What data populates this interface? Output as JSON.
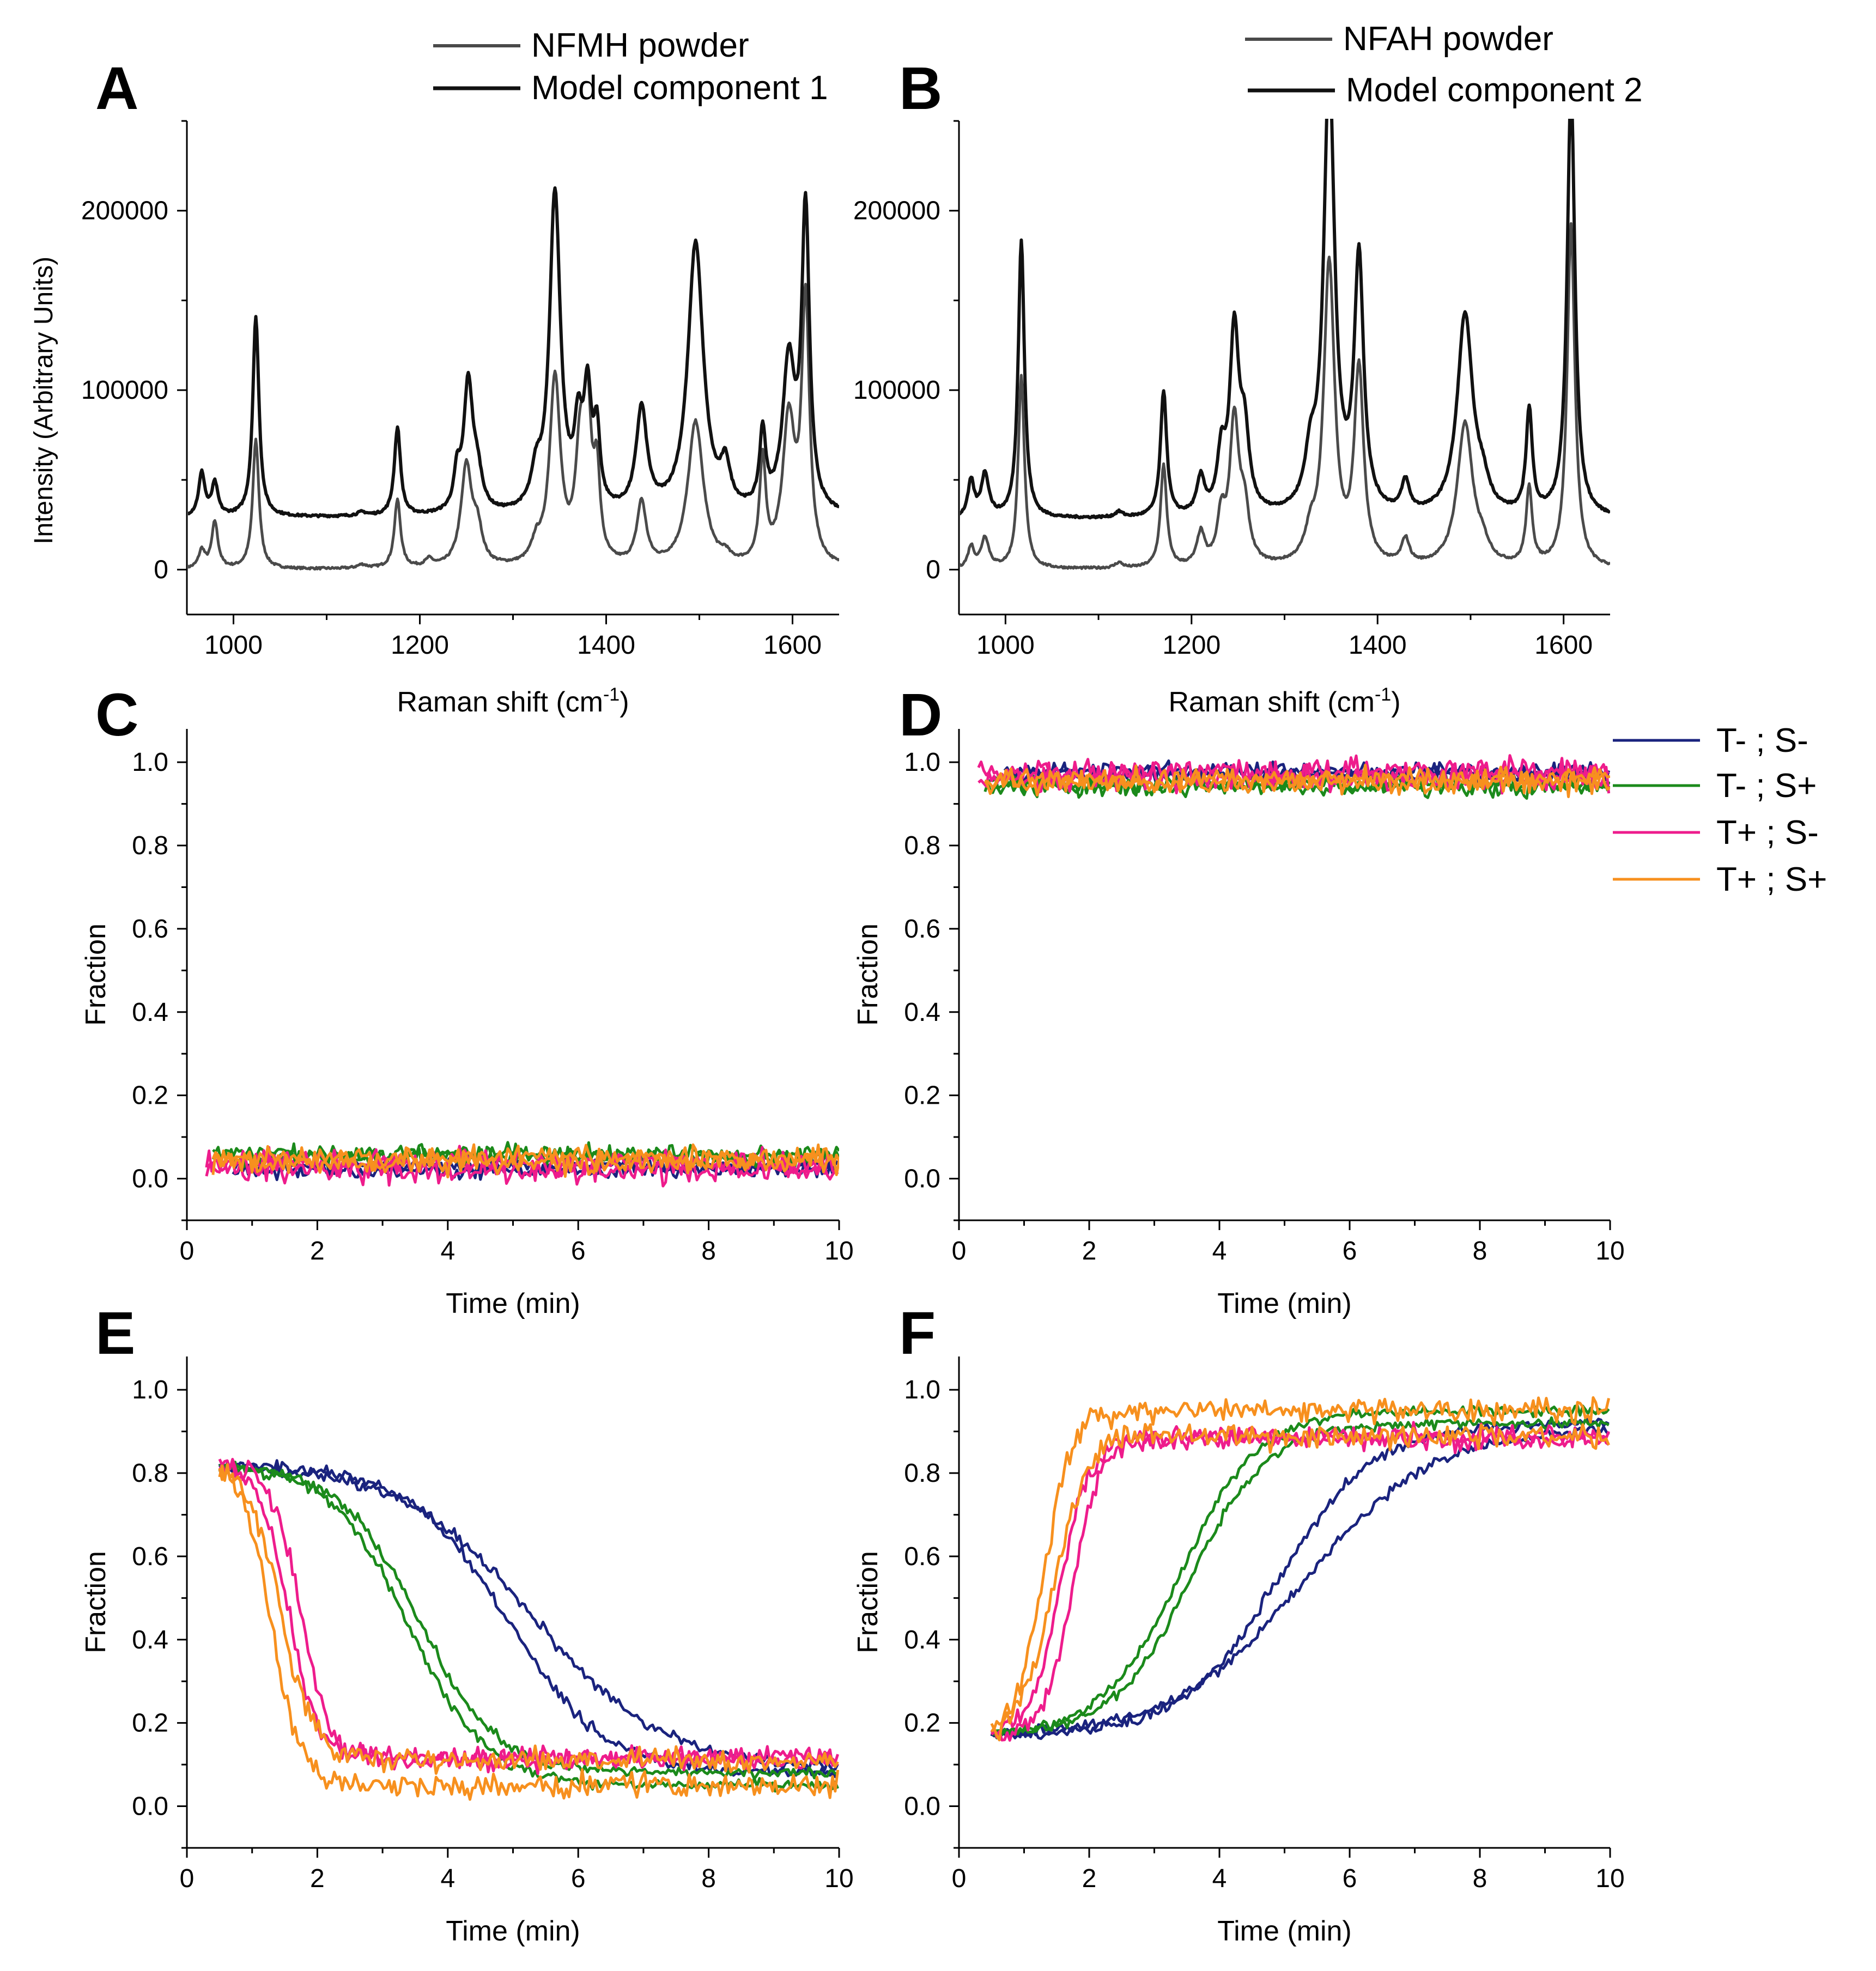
{
  "figure": {
    "axis_label_intensity": "Intensity (Arbitrary Units)",
    "axis_label_raman": "Raman shift (cm",
    "axis_label_raman_sup": "-1",
    "axis_label_raman_close": ")",
    "axis_label_fraction": "Fraction",
    "axis_label_time": "Time (min)",
    "colors": {
      "axis": "#000000",
      "powder": "#4a4a4a",
      "model": "#111111",
      "T- ; S-": "#1a237e",
      "T- ; S+": "#1b8a1b",
      "T+ ; S-": "#ee1c8c",
      "T+ ; S+": "#f7901e"
    },
    "legend_ab": [
      {
        "label": "NFMH powder",
        "color": "#4a4a4a"
      },
      {
        "label": "Model component 1",
        "color": "#111111"
      },
      {
        "label": "NFAH powder",
        "color": "#4a4a4a"
      },
      {
        "label": "Model component 2",
        "color": "#111111"
      }
    ],
    "legend_conditions": [
      "T- ; S-",
      "T- ; S+",
      "T+ ; S-",
      "T+ ; S+"
    ]
  },
  "chart_data": [
    {
      "id": "A",
      "panel_label": "A",
      "type": "line",
      "xlabel": "Raman shift (cm-1)",
      "ylabel": "Intensity (Arbitrary Units)",
      "xlim": [
        950,
        1650
      ],
      "ylim": [
        -25000,
        250000
      ],
      "xticks": [
        1000,
        1200,
        1400,
        1600
      ],
      "yticks": [
        0,
        100000,
        200000
      ],
      "ytick_labels": [
        "0",
        "100000",
        "200000"
      ],
      "series": [
        {
          "name": "NFMH powder",
          "baseline": 0,
          "peaks": [
            [
              966,
              10000,
              4
            ],
            [
              980,
              26000,
              4
            ],
            [
              1024,
              72000,
              4
            ],
            [
              1138,
              2000,
              6
            ],
            [
              1176,
              38000,
              4
            ],
            [
              1210,
              4000,
              5
            ],
            [
              1250,
              56000,
              7
            ],
            [
              1262,
              18000,
              6
            ],
            [
              1325,
              10000,
              6
            ],
            [
              1345,
              104000,
              7
            ],
            [
              1372,
              58000,
              6
            ],
            [
              1380,
              78000,
              5
            ],
            [
              1390,
              46000,
              4
            ],
            [
              1438,
              35000,
              6
            ],
            [
              1496,
              81000,
              10
            ],
            [
              1528,
              4000,
              5
            ],
            [
              1568,
              58000,
              4
            ],
            [
              1596,
              80000,
              8
            ],
            [
              1614,
              145000,
              5
            ]
          ]
        },
        {
          "name": "Model component 1",
          "baseline": 29000,
          "peaks": [
            [
              966,
              24000,
              4
            ],
            [
              980,
              18000,
              4
            ],
            [
              1024,
              111000,
              4
            ],
            [
              1138,
              2000,
              6
            ],
            [
              1176,
              49000,
              4
            ],
            [
              1240,
              19000,
              4
            ],
            [
              1252,
              72000,
              6
            ],
            [
              1262,
              18000,
              6
            ],
            [
              1325,
              18000,
              6
            ],
            [
              1345,
              178000,
              7
            ],
            [
              1370,
              40000,
              5
            ],
            [
              1380,
              62000,
              5
            ],
            [
              1390,
              40000,
              4
            ],
            [
              1438,
              57000,
              7
            ],
            [
              1496,
              151000,
              10
            ],
            [
              1528,
              22000,
              6
            ],
            [
              1568,
              42000,
              4
            ],
            [
              1596,
              82000,
              8
            ],
            [
              1614,
              166000,
              5
            ]
          ]
        }
      ]
    },
    {
      "id": "B",
      "panel_label": "B",
      "type": "line",
      "xlabel": "Raman shift (cm-1)",
      "ylabel": "",
      "xlim": [
        950,
        1650
      ],
      "ylim": [
        -25000,
        250000
      ],
      "xticks": [
        1000,
        1200,
        1400,
        1600
      ],
      "yticks": [
        0,
        100000,
        200000
      ],
      "ytick_labels": [
        "0",
        "100000",
        "200000"
      ],
      "series": [
        {
          "name": "NFAH powder",
          "baseline": 0,
          "peaks": [
            [
              963,
              12000,
              4
            ],
            [
              978,
              17000,
              5
            ],
            [
              1017,
              108000,
              4
            ],
            [
              1122,
              3000,
              5
            ],
            [
              1170,
              57000,
              4
            ],
            [
              1210,
              18000,
              5
            ],
            [
              1232,
              25000,
              5
            ],
            [
              1246,
              80000,
              6
            ],
            [
              1257,
              28000,
              6
            ],
            [
              1328,
              14000,
              7
            ],
            [
              1348,
              168000,
              7
            ],
            [
              1380,
              108000,
              6
            ],
            [
              1430,
              14000,
              5
            ],
            [
              1494,
              80000,
              10
            ],
            [
              1513,
              8000,
              8
            ],
            [
              1563,
              43000,
              4
            ],
            [
              1608,
              191000,
              5
            ]
          ]
        },
        {
          "name": "Model component 2",
          "baseline": 28000,
          "peaks": [
            [
              963,
              20000,
              4
            ],
            [
              978,
              24000,
              5
            ],
            [
              1017,
              155000,
              4
            ],
            [
              1122,
              3000,
              5
            ],
            [
              1170,
              70000,
              4
            ],
            [
              1210,
              20000,
              5
            ],
            [
              1232,
              30000,
              5
            ],
            [
              1246,
              100000,
              6
            ],
            [
              1257,
              40000,
              6
            ],
            [
              1328,
              26000,
              7
            ],
            [
              1348,
              246000,
              7
            ],
            [
              1380,
              140000,
              6
            ],
            [
              1430,
              17000,
              5
            ],
            [
              1494,
              112000,
              10
            ],
            [
              1513,
              12000,
              8
            ],
            [
              1563,
              58000,
              4
            ],
            [
              1608,
              240000,
              5
            ]
          ]
        }
      ]
    },
    {
      "id": "C",
      "panel_label": "C",
      "type": "line",
      "xlabel": "Time (min)",
      "ylabel": "Fraction",
      "xlim": [
        0,
        10
      ],
      "ylim": [
        -0.1,
        1.08
      ],
      "xticks": [
        0,
        2,
        4,
        6,
        8,
        10
      ],
      "yticks": [
        0,
        0.2,
        0.4,
        0.6,
        0.8,
        1.0
      ],
      "ytick_labels": [
        "0.0",
        "0.2",
        "0.4",
        "0.6",
        "0.8",
        "1.0"
      ],
      "series": [
        {
          "name": "T- ; S-",
          "kind": "flat",
          "x_start": 0.7,
          "levels": [
            0.02,
            0.03
          ],
          "noise": 0.01
        },
        {
          "name": "T- ; S+",
          "kind": "flat",
          "x_start": 0.4,
          "levels": [
            0.06,
            0.05
          ],
          "noise": 0.012
        },
        {
          "name": "T+ ; S-",
          "kind": "flat",
          "x_start": 0.3,
          "levels": [
            0.04,
            0.02
          ],
          "noise": 0.018
        },
        {
          "name": "T+ ; S+",
          "kind": "flat",
          "x_start": 0.4,
          "levels": [
            0.05,
            0.04
          ],
          "noise": 0.015
        }
      ]
    },
    {
      "id": "D",
      "panel_label": "D",
      "type": "line",
      "xlabel": "Time (min)",
      "ylabel": "Fraction",
      "xlim": [
        0,
        10
      ],
      "ylim": [
        -0.1,
        1.08
      ],
      "xticks": [
        0,
        2,
        4,
        6,
        8,
        10
      ],
      "yticks": [
        0,
        0.2,
        0.4,
        0.6,
        0.8,
        1.0
      ],
      "ytick_labels": [
        "0.0",
        "0.2",
        "0.4",
        "0.6",
        "0.8",
        "1.0"
      ],
      "series": [
        {
          "name": "T- ; S-",
          "kind": "flat",
          "x_start": 0.7,
          "levels": [
            0.98,
            0.97
          ],
          "noise": 0.01
        },
        {
          "name": "T- ; S+",
          "kind": "flat",
          "x_start": 0.4,
          "levels": [
            0.94,
            0.95
          ],
          "noise": 0.012
        },
        {
          "name": "T+ ; S-",
          "kind": "flat",
          "x_start": 0.3,
          "levels": [
            0.96,
            0.98
          ],
          "noise": 0.018
        },
        {
          "name": "T+ ; S+",
          "kind": "flat",
          "x_start": 0.4,
          "levels": [
            0.95,
            0.96
          ],
          "noise": 0.015
        }
      ]
    },
    {
      "id": "E",
      "panel_label": "E",
      "type": "line",
      "xlabel": "Time (min)",
      "ylabel": "Fraction",
      "xlim": [
        0,
        10
      ],
      "ylim": [
        -0.1,
        1.08
      ],
      "xticks": [
        0,
        2,
        4,
        6,
        8,
        10
      ],
      "yticks": [
        0,
        0.2,
        0.4,
        0.6,
        0.8,
        1.0
      ],
      "ytick_labels": [
        "0.0",
        "0.2",
        "0.4",
        "0.6",
        "0.8",
        "1.0"
      ],
      "series": [
        {
          "name": "T- ; S-",
          "kind": "sigmoid",
          "x_start": 0.5,
          "start": 0.82,
          "runs": [
            {
              "end": 0.08,
              "mid": 4.9,
              "width": 0.75,
              "noise": 0.008
            },
            {
              "end": 0.09,
              "mid": 5.3,
              "width": 1.0,
              "noise": 0.008
            }
          ]
        },
        {
          "name": "T- ; S+",
          "kind": "sigmoid",
          "x_start": 0.5,
          "start": 0.82,
          "runs": [
            {
              "end": 0.05,
              "mid": 3.4,
              "width": 0.6,
              "noise": 0.008
            },
            {
              "end": 0.08,
              "mid": 3.55,
              "width": 0.6,
              "noise": 0.008
            }
          ]
        },
        {
          "name": "T+ ; S-",
          "kind": "sigmoid",
          "x_start": 0.5,
          "start": 0.82,
          "runs": [
            {
              "end": 0.12,
              "mid": 1.55,
              "width": 0.22,
              "noise": 0.015
            },
            {
              "end": 0.11,
              "mid": 1.75,
              "width": 0.22,
              "noise": 0.015
            }
          ]
        },
        {
          "name": "T+ ; S+",
          "kind": "sigmoid",
          "x_start": 0.5,
          "start": 0.82,
          "runs": [
            {
              "end": 0.05,
              "mid": 1.3,
              "width": 0.22,
              "noise": 0.018
            },
            {
              "end": 0.11,
              "mid": 1.45,
              "width": 0.25,
              "noise": 0.018
            }
          ]
        }
      ]
    },
    {
      "id": "F",
      "panel_label": "F",
      "type": "line",
      "xlabel": "Time (min)",
      "ylabel": "Fraction",
      "xlim": [
        0,
        10
      ],
      "ylim": [
        -0.1,
        1.08
      ],
      "xticks": [
        0,
        2,
        4,
        6,
        8,
        10
      ],
      "yticks": [
        0,
        0.2,
        0.4,
        0.6,
        0.8,
        1.0
      ],
      "ytick_labels": [
        "0.0",
        "0.2",
        "0.4",
        "0.6",
        "0.8",
        "1.0"
      ],
      "series": [
        {
          "name": "T- ; S-",
          "kind": "sigmoid",
          "x_start": 0.5,
          "start": 0.17,
          "runs": [
            {
              "end": 0.92,
              "mid": 4.9,
              "width": 0.75,
              "noise": 0.008
            },
            {
              "end": 0.91,
              "mid": 5.3,
              "width": 1.0,
              "noise": 0.008
            }
          ]
        },
        {
          "name": "T- ; S+",
          "kind": "sigmoid",
          "x_start": 0.5,
          "start": 0.17,
          "runs": [
            {
              "end": 0.95,
              "mid": 3.4,
              "width": 0.6,
              "noise": 0.008
            },
            {
              "end": 0.92,
              "mid": 3.55,
              "width": 0.6,
              "noise": 0.008
            }
          ]
        },
        {
          "name": "T+ ; S-",
          "kind": "sigmoid",
          "x_start": 0.5,
          "start": 0.17,
          "runs": [
            {
              "end": 0.88,
              "mid": 1.55,
              "width": 0.22,
              "noise": 0.015
            },
            {
              "end": 0.89,
              "mid": 1.75,
              "width": 0.22,
              "noise": 0.015
            }
          ]
        },
        {
          "name": "T+ ; S+",
          "kind": "sigmoid",
          "x_start": 0.5,
          "start": 0.17,
          "runs": [
            {
              "end": 0.95,
              "mid": 1.3,
              "width": 0.22,
              "noise": 0.018
            },
            {
              "end": 0.89,
              "mid": 1.45,
              "width": 0.25,
              "noise": 0.018
            }
          ]
        }
      ]
    }
  ]
}
